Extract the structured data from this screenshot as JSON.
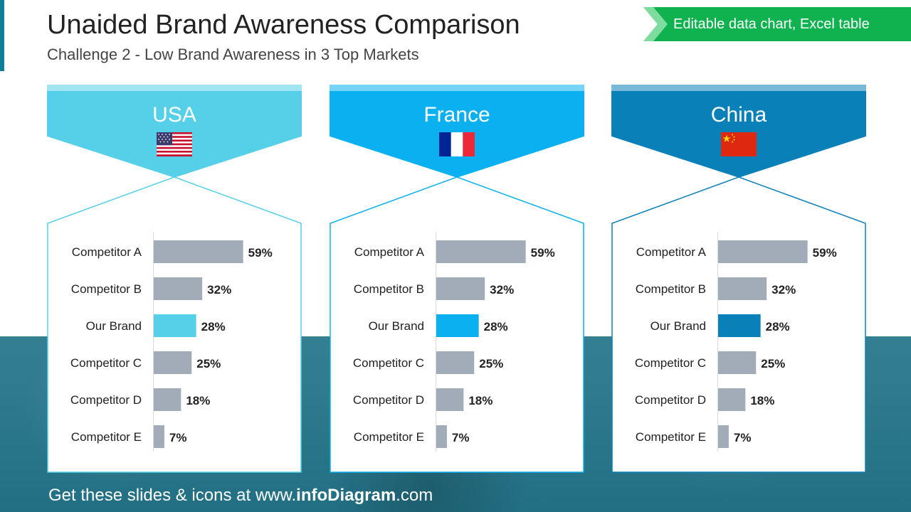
{
  "header": {
    "title": "Unaided Brand Awareness Comparison",
    "subtitle": "Challenge 2 - Low Brand Awareness in 3 Top Markets"
  },
  "badge": {
    "label": "Editable data chart, Excel table",
    "color": "#0fb24f"
  },
  "footer": {
    "prefix": "Get these slides & icons at www.",
    "brand": "infoDiagram",
    "suffix": ".com"
  },
  "colors": {
    "competitor_bar": "#a1acb8",
    "usa": "#55d0e8",
    "france": "#0ab0f0",
    "china": "#0a80b9",
    "band": "#2b7e92"
  },
  "flags": [
    "usa-flag-icon",
    "france-flag-icon",
    "china-flag-icon"
  ],
  "chart_data": [
    {
      "type": "bar",
      "title": "USA",
      "orientation": "horizontal",
      "categories": [
        "Competitor A",
        "Competitor B",
        "Our Brand",
        "Competitor C",
        "Competitor D",
        "Competitor E"
      ],
      "values": [
        59,
        32,
        28,
        25,
        18,
        7
      ],
      "labels": [
        "59%",
        "32%",
        "28%",
        "25%",
        "18%",
        "7%"
      ],
      "highlight": "Our Brand",
      "xlim": [
        0,
        100
      ]
    },
    {
      "type": "bar",
      "title": "France",
      "orientation": "horizontal",
      "categories": [
        "Competitor A",
        "Competitor B",
        "Our Brand",
        "Competitor C",
        "Competitor D",
        "Competitor E"
      ],
      "values": [
        59,
        32,
        28,
        25,
        18,
        7
      ],
      "labels": [
        "59%",
        "32%",
        "28%",
        "25%",
        "18%",
        "7%"
      ],
      "highlight": "Our Brand",
      "xlim": [
        0,
        100
      ]
    },
    {
      "type": "bar",
      "title": "China",
      "orientation": "horizontal",
      "categories": [
        "Competitor A",
        "Competitor B",
        "Our Brand",
        "Competitor C",
        "Competitor D",
        "Competitor E"
      ],
      "values": [
        59,
        32,
        28,
        25,
        18,
        7
      ],
      "labels": [
        "59%",
        "32%",
        "28%",
        "25%",
        "18%",
        "7%"
      ],
      "highlight": "Our Brand",
      "xlim": [
        0,
        100
      ]
    }
  ]
}
